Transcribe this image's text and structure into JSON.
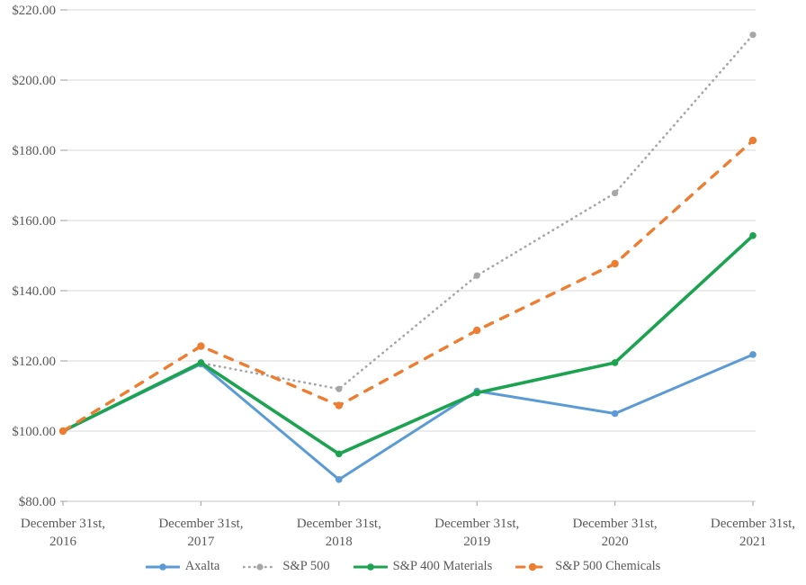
{
  "chart_data": {
    "type": "line",
    "title": "",
    "xlabel": "",
    "ylabel": "",
    "categories": [
      "December 31st, 2016",
      "December 31st, 2017",
      "December 31st, 2018",
      "December 31st, 2019",
      "December 31st, 2020",
      "December 31st, 2021"
    ],
    "series": [
      {
        "name": "Axalta",
        "color": "#5B9BD5",
        "style": "solid",
        "marker": "circle",
        "values": [
          100.0,
          119.1,
          86.2,
          111.4,
          105.0,
          121.8
        ]
      },
      {
        "name": "S&P 500",
        "color": "#A6A6A6",
        "style": "dotted",
        "marker": "circle",
        "values": [
          100.0,
          119.4,
          112.0,
          144.3,
          167.8,
          212.9
        ]
      },
      {
        "name": "S&P 400 Materials",
        "color": "#1CA350",
        "style": "solid",
        "marker": "circle",
        "values": [
          100.0,
          119.5,
          93.5,
          110.9,
          119.5,
          155.7
        ]
      },
      {
        "name": "S&P 500 Chemicals",
        "color": "#ED7D31",
        "style": "dashed",
        "marker": "circle",
        "values": [
          100.0,
          124.2,
          107.3,
          128.7,
          147.7,
          182.8
        ]
      }
    ],
    "ylim": [
      80,
      220
    ],
    "ytick_step": 20,
    "y_tick_labels": [
      "$220.00",
      "$200.00",
      "$180.00",
      "$160.00",
      "$140.00",
      "$120.00",
      "$100.00",
      "$80.00"
    ],
    "grid": true,
    "legend_position": "bottom",
    "colors": {
      "gridline": "#D9D9D9",
      "axis_line": "#C6C6C6",
      "tick": "#ADADAD",
      "label_text": "#595959"
    }
  }
}
